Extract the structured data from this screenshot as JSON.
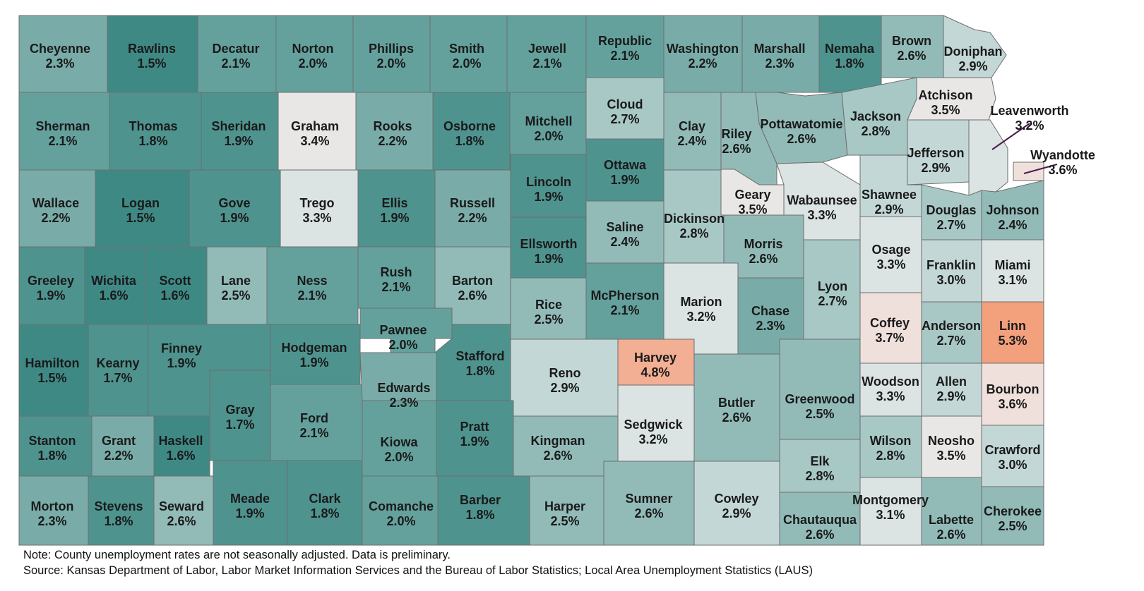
{
  "map": {
    "note": "Note: County unemployment rates are not seasonally adjusted. Data is preliminary.",
    "source": "Source: Kansas Department of Labor, Labor Market Information Services and the Bureau of Labor Statistics; Local Area Unemployment Statistics (LAUS)",
    "color_scale": [
      {
        "max": 1.6,
        "color": "#3f8985"
      },
      {
        "max": 1.9,
        "color": "#4f938f"
      },
      {
        "max": 2.1,
        "color": "#64a19d"
      },
      {
        "max": 2.3,
        "color": "#79aca8"
      },
      {
        "max": 2.6,
        "color": "#92bbb8"
      },
      {
        "max": 2.8,
        "color": "#a8c8c6"
      },
      {
        "max": 3.0,
        "color": "#c3d7d6"
      },
      {
        "max": 3.3,
        "color": "#dbe3e3"
      },
      {
        "max": 3.5,
        "color": "#e9e7e6"
      },
      {
        "max": 3.7,
        "color": "#f0e0dc"
      },
      {
        "max": 5.0,
        "color": "#f2af93"
      },
      {
        "max": 9.9,
        "color": "#f3a07d"
      }
    ],
    "counties": [
      {
        "name": "Cheyenne",
        "rate": "2.3%",
        "value": 2.3
      },
      {
        "name": "Rawlins",
        "rate": "1.5%",
        "value": 1.5
      },
      {
        "name": "Decatur",
        "rate": "2.1%",
        "value": 2.1
      },
      {
        "name": "Norton",
        "rate": "2.0%",
        "value": 2.0
      },
      {
        "name": "Phillips",
        "rate": "2.0%",
        "value": 2.0
      },
      {
        "name": "Smith",
        "rate": "2.0%",
        "value": 2.0
      },
      {
        "name": "Jewell",
        "rate": "2.1%",
        "value": 2.1
      },
      {
        "name": "Republic",
        "rate": "2.1%",
        "value": 2.1
      },
      {
        "name": "Washington",
        "rate": "2.2%",
        "value": 2.2
      },
      {
        "name": "Marshall",
        "rate": "2.3%",
        "value": 2.3
      },
      {
        "name": "Nemaha",
        "rate": "1.8%",
        "value": 1.8
      },
      {
        "name": "Brown",
        "rate": "2.6%",
        "value": 2.6
      },
      {
        "name": "Doniphan",
        "rate": "2.9%",
        "value": 2.9
      },
      {
        "name": "Sherman",
        "rate": "2.1%",
        "value": 2.1
      },
      {
        "name": "Thomas",
        "rate": "1.8%",
        "value": 1.8
      },
      {
        "name": "Sheridan",
        "rate": "1.9%",
        "value": 1.9
      },
      {
        "name": "Graham",
        "rate": "3.4%",
        "value": 3.4
      },
      {
        "name": "Rooks",
        "rate": "2.2%",
        "value": 2.2
      },
      {
        "name": "Osborne",
        "rate": "1.8%",
        "value": 1.8
      },
      {
        "name": "Mitchell",
        "rate": "2.0%",
        "value": 2.0
      },
      {
        "name": "Cloud",
        "rate": "2.7%",
        "value": 2.7
      },
      {
        "name": "Clay",
        "rate": "2.4%",
        "value": 2.4
      },
      {
        "name": "Riley",
        "rate": "2.6%",
        "value": 2.6
      },
      {
        "name": "Pottawatomie",
        "rate": "2.6%",
        "value": 2.6
      },
      {
        "name": "Jackson",
        "rate": "2.8%",
        "value": 2.8
      },
      {
        "name": "Atchison",
        "rate": "3.5%",
        "value": 3.5
      },
      {
        "name": "Leavenworth",
        "rate": "3.2%",
        "value": 3.2
      },
      {
        "name": "Jefferson",
        "rate": "2.9%",
        "value": 2.9
      },
      {
        "name": "Wyandotte",
        "rate": "3.6%",
        "value": 3.6
      },
      {
        "name": "Wallace",
        "rate": "2.2%",
        "value": 2.2
      },
      {
        "name": "Logan",
        "rate": "1.5%",
        "value": 1.5
      },
      {
        "name": "Gove",
        "rate": "1.9%",
        "value": 1.9
      },
      {
        "name": "Trego",
        "rate": "3.3%",
        "value": 3.3
      },
      {
        "name": "Ellis",
        "rate": "1.9%",
        "value": 1.9
      },
      {
        "name": "Russell",
        "rate": "2.2%",
        "value": 2.2
      },
      {
        "name": "Lincoln",
        "rate": "1.9%",
        "value": 1.9
      },
      {
        "name": "Ottawa",
        "rate": "1.9%",
        "value": 1.9
      },
      {
        "name": "Geary",
        "rate": "3.5%",
        "value": 3.5
      },
      {
        "name": "Wabaunsee",
        "rate": "3.3%",
        "value": 3.3
      },
      {
        "name": "Shawnee",
        "rate": "2.9%",
        "value": 2.9
      },
      {
        "name": "Douglas",
        "rate": "2.7%",
        "value": 2.7
      },
      {
        "name": "Johnson",
        "rate": "2.4%",
        "value": 2.4
      },
      {
        "name": "Ellsworth",
        "rate": "1.9%",
        "value": 1.9
      },
      {
        "name": "Saline",
        "rate": "2.4%",
        "value": 2.4
      },
      {
        "name": "Dickinson",
        "rate": "2.8%",
        "value": 2.8
      },
      {
        "name": "Morris",
        "rate": "2.6%",
        "value": 2.6
      },
      {
        "name": "Osage",
        "rate": "3.3%",
        "value": 3.3
      },
      {
        "name": "Franklin",
        "rate": "3.0%",
        "value": 3.0
      },
      {
        "name": "Miami",
        "rate": "3.1%",
        "value": 3.1
      },
      {
        "name": "Greeley",
        "rate": "1.9%",
        "value": 1.9
      },
      {
        "name": "Wichita",
        "rate": "1.6%",
        "value": 1.6
      },
      {
        "name": "Scott",
        "rate": "1.6%",
        "value": 1.6
      },
      {
        "name": "Lane",
        "rate": "2.5%",
        "value": 2.5
      },
      {
        "name": "Ness",
        "rate": "2.1%",
        "value": 2.1
      },
      {
        "name": "Rush",
        "rate": "2.1%",
        "value": 2.1
      },
      {
        "name": "Barton",
        "rate": "2.6%",
        "value": 2.6
      },
      {
        "name": "Rice",
        "rate": "2.5%",
        "value": 2.5
      },
      {
        "name": "McPherson",
        "rate": "2.1%",
        "value": 2.1
      },
      {
        "name": "Marion",
        "rate": "3.2%",
        "value": 3.2
      },
      {
        "name": "Chase",
        "rate": "2.3%",
        "value": 2.3
      },
      {
        "name": "Lyon",
        "rate": "2.7%",
        "value": 2.7
      },
      {
        "name": "Coffey",
        "rate": "3.7%",
        "value": 3.7
      },
      {
        "name": "Anderson",
        "rate": "2.7%",
        "value": 2.7
      },
      {
        "name": "Linn",
        "rate": "5.3%",
        "value": 5.3
      },
      {
        "name": "Hamilton",
        "rate": "1.5%",
        "value": 1.5
      },
      {
        "name": "Kearny",
        "rate": "1.7%",
        "value": 1.7
      },
      {
        "name": "Finney",
        "rate": "1.9%",
        "value": 1.9
      },
      {
        "name": "Hodgeman",
        "rate": "1.9%",
        "value": 1.9
      },
      {
        "name": "Pawnee",
        "rate": "2.0%",
        "value": 2.0
      },
      {
        "name": "Stafford",
        "rate": "1.8%",
        "value": 1.8
      },
      {
        "name": "Reno",
        "rate": "2.9%",
        "value": 2.9
      },
      {
        "name": "Harvey",
        "rate": "4.8%",
        "value": 4.8
      },
      {
        "name": "Butler",
        "rate": "2.6%",
        "value": 2.6
      },
      {
        "name": "Greenwood",
        "rate": "2.5%",
        "value": 2.5
      },
      {
        "name": "Woodson",
        "rate": "3.3%",
        "value": 3.3
      },
      {
        "name": "Allen",
        "rate": "2.9%",
        "value": 2.9
      },
      {
        "name": "Bourbon",
        "rate": "3.6%",
        "value": 3.6
      },
      {
        "name": "Gray",
        "rate": "1.7%",
        "value": 1.7
      },
      {
        "name": "Ford",
        "rate": "2.1%",
        "value": 2.1
      },
      {
        "name": "Edwards",
        "rate": "2.3%",
        "value": 2.3
      },
      {
        "name": "Sedgwick",
        "rate": "3.2%",
        "value": 3.2
      },
      {
        "name": "Stanton",
        "rate": "1.8%",
        "value": 1.8
      },
      {
        "name": "Grant",
        "rate": "2.2%",
        "value": 2.2
      },
      {
        "name": "Haskell",
        "rate": "1.6%",
        "value": 1.6
      },
      {
        "name": "Kiowa",
        "rate": "2.0%",
        "value": 2.0
      },
      {
        "name": "Pratt",
        "rate": "1.9%",
        "value": 1.9
      },
      {
        "name": "Kingman",
        "rate": "2.6%",
        "value": 2.6
      },
      {
        "name": "Wilson",
        "rate": "2.8%",
        "value": 2.8
      },
      {
        "name": "Neosho",
        "rate": "3.5%",
        "value": 3.5
      },
      {
        "name": "Crawford",
        "rate": "3.0%",
        "value": 3.0
      },
      {
        "name": "Elk",
        "rate": "2.8%",
        "value": 2.8
      },
      {
        "name": "Morton",
        "rate": "2.3%",
        "value": 2.3
      },
      {
        "name": "Stevens",
        "rate": "1.8%",
        "value": 1.8
      },
      {
        "name": "Seward",
        "rate": "2.6%",
        "value": 2.6
      },
      {
        "name": "Meade",
        "rate": "1.9%",
        "value": 1.9
      },
      {
        "name": "Clark",
        "rate": "1.8%",
        "value": 1.8
      },
      {
        "name": "Comanche",
        "rate": "2.0%",
        "value": 2.0
      },
      {
        "name": "Barber",
        "rate": "1.8%",
        "value": 1.8
      },
      {
        "name": "Harper",
        "rate": "2.5%",
        "value": 2.5
      },
      {
        "name": "Sumner",
        "rate": "2.6%",
        "value": 2.6
      },
      {
        "name": "Cowley",
        "rate": "2.9%",
        "value": 2.9
      },
      {
        "name": "Chautauqua",
        "rate": "2.6%",
        "value": 2.6
      },
      {
        "name": "Montgomery",
        "rate": "3.1%",
        "value": 3.1
      },
      {
        "name": "Labette",
        "rate": "2.6%",
        "value": 2.6
      },
      {
        "name": "Cherokee",
        "rate": "2.5%",
        "value": 2.5
      }
    ]
  }
}
